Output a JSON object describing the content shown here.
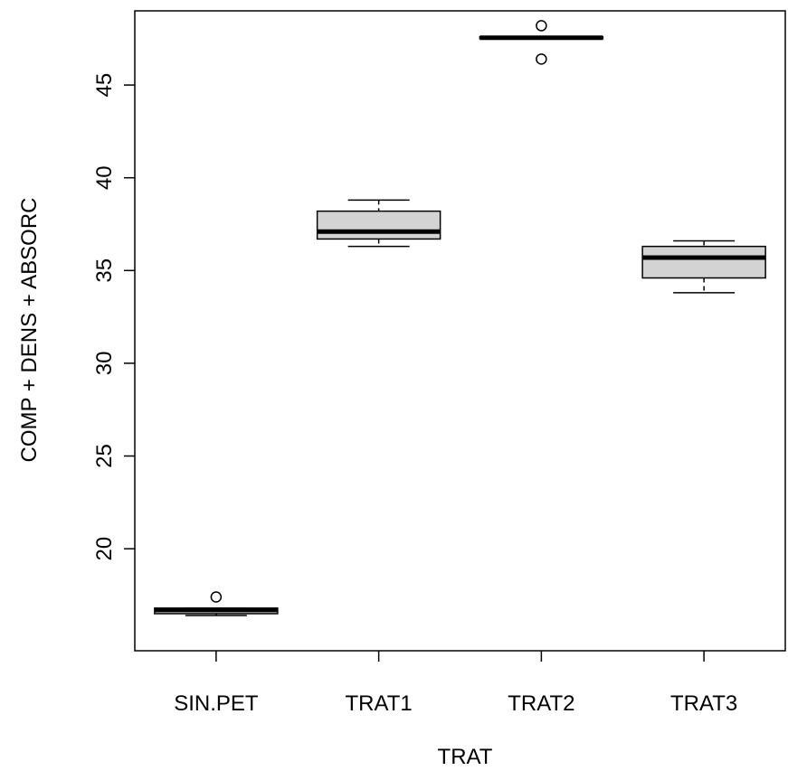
{
  "chart_data": {
    "type": "boxplot",
    "xlabel": "TRAT",
    "ylabel": "COMP + DENS + ABSORC",
    "categories": [
      "SIN.PET",
      "TRAT1",
      "TRAT2",
      "TRAT3"
    ],
    "ylim": [
      14.5,
      49
    ],
    "yticks": [
      20,
      25,
      30,
      35,
      40,
      45
    ],
    "ytick_labels": [
      "20",
      "25",
      "30",
      "35",
      "40",
      "45"
    ],
    "grid": false,
    "legend": "none",
    "boxes": [
      {
        "category": "SIN.PET",
        "whisker_low": 16.4,
        "q1": 16.5,
        "median": 16.7,
        "q3": 16.8,
        "whisker_high": 16.8,
        "outliers": [
          17.4
        ]
      },
      {
        "category": "TRAT1",
        "whisker_low": 36.3,
        "q1": 36.7,
        "median": 37.1,
        "q3": 38.2,
        "whisker_high": 38.8,
        "outliers": []
      },
      {
        "category": "TRAT2",
        "whisker_low": 47.5,
        "q1": 47.5,
        "median": 47.55,
        "q3": 47.6,
        "whisker_high": 47.6,
        "outliers": [
          48.2,
          46.4
        ]
      },
      {
        "category": "TRAT3",
        "whisker_low": 33.8,
        "q1": 34.6,
        "median": 35.7,
        "q3": 36.3,
        "whisker_high": 36.6,
        "outliers": []
      }
    ],
    "colors": {
      "box_fill": "#d3d3d3",
      "stroke": "#000000",
      "background": "#ffffff"
    }
  }
}
